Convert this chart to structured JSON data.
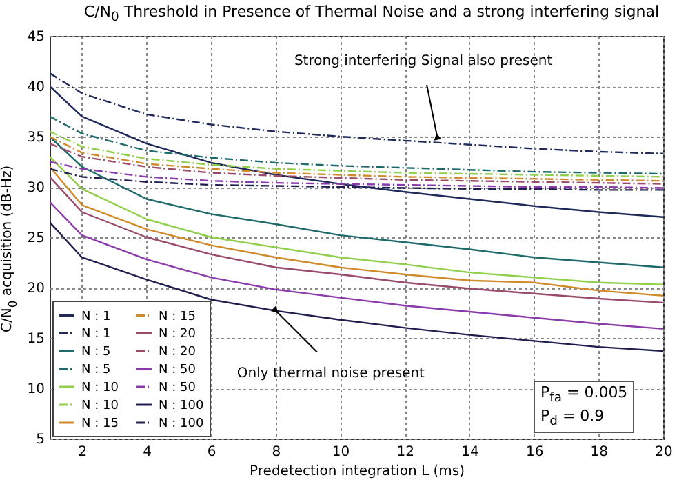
{
  "chart_data": {
    "type": "line",
    "title": "C/N$_{0}$ Threshold in Presence of Thermal Noise and a strong interfering signal",
    "xlabel": "Predetection integration L (ms)",
    "ylabel": "C/N$_{0}$ acquisition (dB-Hz)",
    "x": [
      1,
      2,
      4,
      6,
      8,
      10,
      12,
      14,
      16,
      18,
      20
    ],
    "xlim": [
      1,
      20
    ],
    "xticks": [
      2,
      4,
      6,
      8,
      10,
      12,
      14,
      16,
      18,
      20
    ],
    "ylim": [
      5,
      45
    ],
    "yticks": [
      5,
      10,
      15,
      20,
      25,
      30,
      35,
      40,
      45
    ],
    "grid": true,
    "legend": "bottom left",
    "series": [
      {
        "name": "N : 1",
        "color": "#1f2a5a",
        "line_style": "solid",
        "values": [
          40,
          37,
          34.3,
          32.4,
          31.2,
          30.3,
          29.5,
          28.8,
          28.1,
          27.5,
          27
        ]
      },
      {
        "name": "N : 5",
        "color": "#1e6a6a",
        "line_style": "solid",
        "values": [
          35,
          32,
          28.8,
          27.3,
          26.3,
          25.2,
          24.5,
          23.8,
          23,
          22.5,
          22
        ]
      },
      {
        "name": "N : 10",
        "color": "#8fcf4a",
        "line_style": "solid",
        "values": [
          33,
          29.8,
          26.8,
          25,
          24,
          23,
          22.3,
          21.5,
          21,
          20.5,
          20.3
        ]
      },
      {
        "name": "N : 15",
        "color": "#d08a2a",
        "line_style": "solid",
        "values": [
          32,
          28.2,
          25.8,
          24.2,
          23,
          22,
          21.3,
          20.7,
          20.5,
          19.7,
          19.2
        ]
      },
      {
        "name": "N : 20",
        "color": "#9a4a6a",
        "line_style": "solid",
        "values": [
          31,
          27.5,
          25,
          23.3,
          22,
          21.3,
          20.5,
          19.9,
          19.4,
          18.9,
          18.5
        ]
      },
      {
        "name": "N : 50",
        "color": "#8a3aaa",
        "line_style": "solid",
        "values": [
          28.5,
          25.2,
          22.8,
          21,
          19.8,
          19,
          18.2,
          17.6,
          17,
          16.4,
          15.9
        ]
      },
      {
        "name": "N : 100",
        "color": "#202050",
        "line_style": "solid",
        "values": [
          26.5,
          23,
          20.8,
          18.8,
          17.7,
          16.8,
          16,
          15.3,
          14.7,
          14.1,
          13.7
        ]
      },
      {
        "name": "N : 1",
        "color": "#1f2a5a",
        "line_style": "dashed",
        "values": [
          41.3,
          39.3,
          37.2,
          36.2,
          35.5,
          35,
          34.6,
          34.2,
          33.8,
          33.5,
          33.3
        ]
      },
      {
        "name": "N : 5",
        "color": "#1e6a6a",
        "line_style": "dashed",
        "values": [
          37,
          35.3,
          33.6,
          32.9,
          32.4,
          32.1,
          31.9,
          31.7,
          31.5,
          31.4,
          31.3
        ]
      },
      {
        "name": "N : 10",
        "color": "#8fcf4a",
        "line_style": "dashed",
        "values": [
          35.5,
          34,
          32.8,
          32.2,
          31.8,
          31.6,
          31.4,
          31.3,
          31.2,
          31.1,
          31
        ]
      },
      {
        "name": "N : 15",
        "color": "#d08a2a",
        "line_style": "dashed",
        "values": [
          35,
          33.4,
          32.3,
          31.8,
          31.4,
          31.2,
          31,
          30.9,
          30.8,
          30.7,
          30.6
        ]
      },
      {
        "name": "N : 20",
        "color": "#9a4a6a",
        "line_style": "dashed",
        "values": [
          34.3,
          33,
          32,
          31.4,
          31.1,
          30.9,
          30.7,
          30.6,
          30.5,
          30.4,
          30.3
        ]
      },
      {
        "name": "N : 50",
        "color": "#8a3aaa",
        "line_style": "dashed",
        "values": [
          32.5,
          31.8,
          31,
          30.6,
          30.4,
          30.3,
          30.2,
          30.1,
          30,
          30,
          29.9
        ]
      },
      {
        "name": "N : 100",
        "color": "#202050",
        "line_style": "dashed",
        "values": [
          31.8,
          31,
          30.5,
          30.2,
          30.1,
          30,
          29.9,
          29.8,
          29.8,
          29.7,
          29.7
        ]
      }
    ],
    "annotations": [
      {
        "text": "Strong interfering Signal also present",
        "x": 13,
        "y": 35
      },
      {
        "text": "Only thermal noise present",
        "x": 8,
        "y": 17.7
      },
      "P$_{fa}$ = 0.005",
      "P$_{d}$ = 0.9"
    ]
  }
}
